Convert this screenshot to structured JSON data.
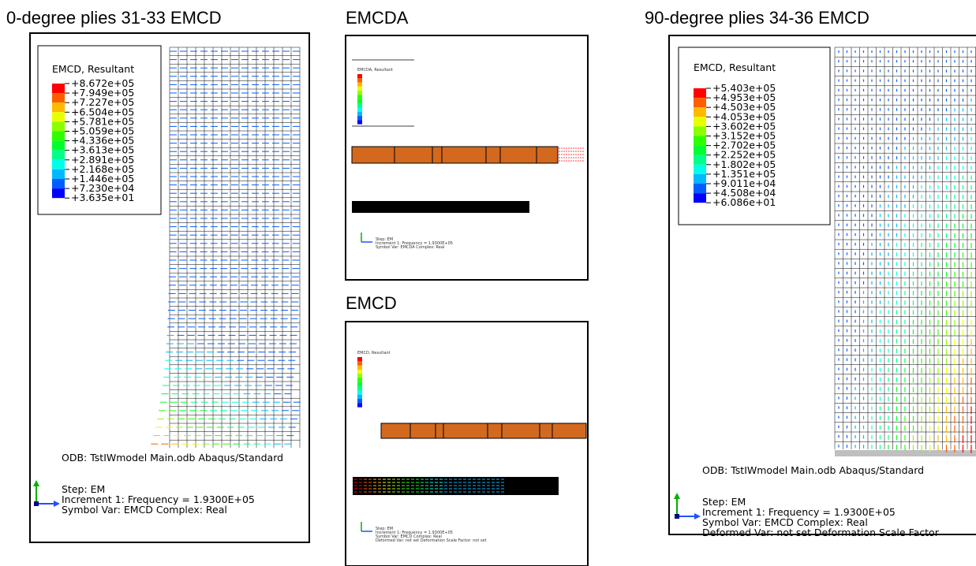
{
  "panels": [
    {
      "title": "0-degree plies 31-33 EMCD",
      "legend_title": "EMCD, Resultant",
      "legend_values": [
        "+8.672e+05",
        "+7.949e+05",
        "+7.227e+05",
        "+6.504e+05",
        "+5.781e+05",
        "+5.059e+05",
        "+4.336e+05",
        "+3.613e+05",
        "+2.891e+05",
        "+2.168e+05",
        "+1.446e+05",
        "+7.230e+04",
        "+3.635e+01"
      ],
      "odb": "ODB: TstIWmodel Main.odb    Abaqus/Standard",
      "step": "Step: EM",
      "increment": "Increment      1: Frequency =    1.9300E+05",
      "symbol_var": "Symbol Var: EMCD    Complex: Real"
    },
    {
      "title": "EMCDA",
      "legend_title": "EMCDA, Resultant",
      "step": "Step: EM",
      "increment": "Increment    1: Frequency =   1.9300E+05",
      "symbol_var": "Symbol Var: EMCDA    Complex: Real"
    },
    {
      "title": "EMCD",
      "legend_title": "EMCD, Resultant",
      "step": "Step: EM",
      "increment": "Increment    1: Frequency =   1.9300E+05",
      "symbol_var": "Symbol Var: EMCD    Complex: Real",
      "deformed_var": "Deformed Var: not set    Deformation Scale Factor: not set"
    },
    {
      "title": "90-degree plies 34-36 EMCD",
      "legend_title": "EMCD, Resultant",
      "legend_values": [
        "+5.403e+05",
        "+4.953e+05",
        "+4.503e+05",
        "+4.053e+05",
        "+3.602e+05",
        "+3.152e+05",
        "+2.702e+05",
        "+2.252e+05",
        "+1.802e+05",
        "+1.351e+05",
        "+9.011e+04",
        "+4.508e+04",
        "+6.086e+01"
      ],
      "odb": "ODB: TstIWmodel  Main.odb     Abaqus/Standard",
      "step": "Step: EM",
      "increment": "Increment      1: Frequency =    1.9300E+05",
      "symbol_var": "Symbol Var: EMCD    Complex: Real",
      "deformed_var": "Deformed Var: not set    Deformation Scale Factor"
    }
  ]
}
